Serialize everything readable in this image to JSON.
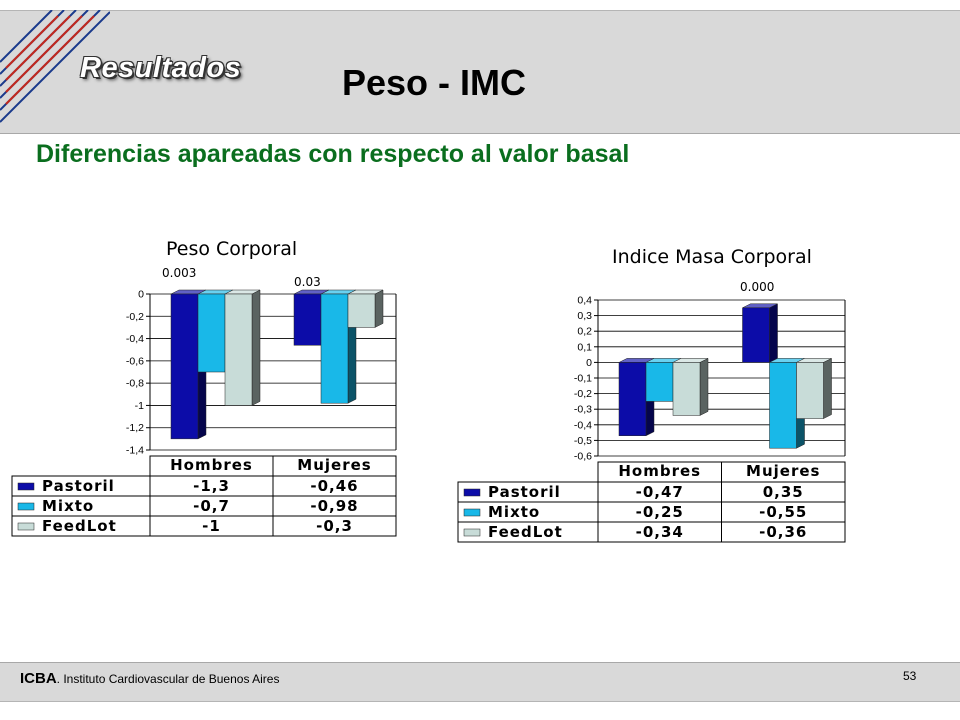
{
  "header": {
    "section_label": "Resultados",
    "title": "Peso - IMC"
  },
  "subtitle": "Diferencias apareadas con respecto al valor basal",
  "colors": {
    "Pastoril": "#0c0ca8",
    "Mixto": "#19b8e8",
    "FeedLot": "#c8dcd8",
    "subtitle": "#0a6e1e"
  },
  "charts": {
    "left": {
      "title": "Peso Corporal",
      "pvalues": [
        "0.003",
        "0.03"
      ]
    },
    "right": {
      "title": "Indice Masa Corporal",
      "pvalues": [
        "0.000"
      ]
    }
  },
  "chart_data": [
    {
      "type": "bar",
      "title": "Peso Corporal",
      "categories": [
        "Hombres",
        "Mujeres"
      ],
      "series": [
        {
          "name": "Pastoril",
          "values": [
            -1.3,
            -0.46
          ],
          "labels": [
            "-1,3",
            "-0,46"
          ]
        },
        {
          "name": "Mixto",
          "values": [
            -0.7,
            -0.98
          ],
          "labels": [
            "-0,7",
            "-0,98"
          ]
        },
        {
          "name": "FeedLot",
          "values": [
            -1,
            -0.3
          ],
          "labels": [
            "-1",
            "-0,3"
          ]
        }
      ],
      "ylim": [
        -1.4,
        0
      ],
      "yticks": [
        0,
        -0.2,
        -0.4,
        -0.6,
        -0.8,
        -1,
        -1.2,
        -1.4
      ],
      "ytick_labels": [
        "0",
        "-0,2",
        "-0,4",
        "-0,6",
        "-0,8",
        "-1",
        "-1,2",
        "-1,4"
      ],
      "annotations": [
        "0.003",
        "0.03"
      ],
      "legend": "data table below chart"
    },
    {
      "type": "bar",
      "title": "Indice Masa Corporal",
      "categories": [
        "Hombres",
        "Mujeres"
      ],
      "series": [
        {
          "name": "Pastoril",
          "values": [
            -0.47,
            0.35
          ],
          "labels": [
            "-0,47",
            "0,35"
          ]
        },
        {
          "name": "Mixto",
          "values": [
            -0.25,
            -0.55
          ],
          "labels": [
            "-0,25",
            "-0,55"
          ]
        },
        {
          "name": "FeedLot",
          "values": [
            -0.34,
            -0.36
          ],
          "labels": [
            "-0,34",
            "-0,36"
          ]
        }
      ],
      "ylim": [
        -0.6,
        0.4
      ],
      "yticks": [
        0.4,
        0.3,
        0.2,
        0.1,
        0,
        -0.1,
        -0.2,
        -0.3,
        -0.4,
        -0.5,
        -0.6
      ],
      "ytick_labels": [
        "0,4",
        "0,3",
        "0,2",
        "0,1",
        "0",
        "-0,1",
        "-0,2",
        "-0,3",
        "-0,4",
        "-0,5",
        "-0,6"
      ],
      "annotations": [
        "0.000"
      ],
      "legend": "data table below chart"
    }
  ],
  "footer": {
    "org": "ICBA",
    "org_rest": ". Instituto Cardiovascular de Buenos Aires",
    "page": "53"
  }
}
